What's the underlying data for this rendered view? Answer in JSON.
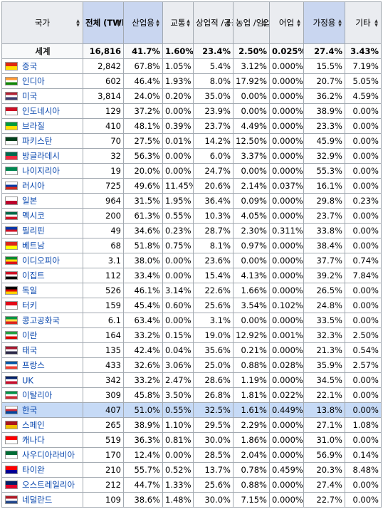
{
  "headers": [
    "국가",
    "전체 (TWh)",
    "산업용",
    "교통",
    "상업적 /공공 서비스",
    "농업 /임업",
    "어업",
    "가정용",
    "기타"
  ],
  "world": {
    "name": "세계",
    "vals": [
      "16,816",
      "41.7%",
      "1.60%",
      "23.4%",
      "2.50%",
      "0.025%",
      "27.4%",
      "3.43%"
    ]
  },
  "rows": [
    {
      "name": "중국",
      "flag": "china-flag-icon",
      "colors": [
        "#de2910",
        "#ffde00"
      ],
      "vals": [
        "2,842",
        "67.8%",
        "1.05%",
        "5.4%",
        "3.12%",
        "0.000%",
        "15.5%",
        "7.19%"
      ]
    },
    {
      "name": "인디아",
      "flag": "india-flag-icon",
      "colors": [
        "#ff9933",
        "#ffffff",
        "#138808"
      ],
      "vals": [
        "602",
        "46.4%",
        "1.93%",
        "8.0%",
        "17.92%",
        "0.000%",
        "20.7%",
        "5.05%"
      ]
    },
    {
      "name": "미국",
      "flag": "usa-flag-icon",
      "colors": [
        "#b22234",
        "#ffffff",
        "#3c3b6e"
      ],
      "vals": [
        "3,814",
        "24.0%",
        "0.20%",
        "35.0%",
        "0.00%",
        "0.000%",
        "36.2%",
        "4.59%"
      ]
    },
    {
      "name": "인도네시아",
      "flag": "indonesia-flag-icon",
      "colors": [
        "#ce1126",
        "#ffffff"
      ],
      "vals": [
        "129",
        "37.2%",
        "0.00%",
        "23.9%",
        "0.00%",
        "0.000%",
        "38.9%",
        "0.00%"
      ]
    },
    {
      "name": "브라질",
      "flag": "brazil-flag-icon",
      "colors": [
        "#009c3b",
        "#ffdf00"
      ],
      "vals": [
        "410",
        "48.1%",
        "0.39%",
        "23.7%",
        "4.49%",
        "0.000%",
        "23.3%",
        "0.00%"
      ]
    },
    {
      "name": "파키스탄",
      "flag": "pakistan-flag-icon",
      "colors": [
        "#01411c",
        "#ffffff"
      ],
      "vals": [
        "70",
        "27.5%",
        "0.01%",
        "14.2%",
        "12.50%",
        "0.000%",
        "45.9%",
        "0.00%"
      ]
    },
    {
      "name": "방글라데시",
      "flag": "bangladesh-flag-icon",
      "colors": [
        "#006a4e",
        "#f42a41"
      ],
      "vals": [
        "32",
        "56.3%",
        "0.00%",
        "6.0%",
        "3.37%",
        "0.000%",
        "32.9%",
        "0.00%"
      ]
    },
    {
      "name": "나이지리아",
      "flag": "nigeria-flag-icon",
      "colors": [
        "#008751",
        "#ffffff"
      ],
      "vals": [
        "19",
        "20.0%",
        "0.00%",
        "24.7%",
        "0.00%",
        "0.000%",
        "55.3%",
        "0.00%"
      ]
    },
    {
      "name": "러시아",
      "flag": "russia-flag-icon",
      "colors": [
        "#ffffff",
        "#0039a6",
        "#d52b1e"
      ],
      "vals": [
        "725",
        "49.6%",
        "11.45%",
        "20.6%",
        "2.14%",
        "0.037%",
        "16.1%",
        "0.00%"
      ]
    },
    {
      "name": "일본",
      "flag": "japan-flag-icon",
      "colors": [
        "#ffffff",
        "#bc002d"
      ],
      "vals": [
        "964",
        "31.5%",
        "1.95%",
        "36.4%",
        "0.09%",
        "0.000%",
        "29.8%",
        "0.23%"
      ]
    },
    {
      "name": "멕시코",
      "flag": "mexico-flag-icon",
      "colors": [
        "#006847",
        "#ffffff",
        "#ce1126"
      ],
      "vals": [
        "200",
        "61.3%",
        "0.55%",
        "10.3%",
        "4.05%",
        "0.000%",
        "23.7%",
        "0.00%"
      ]
    },
    {
      "name": "필리핀",
      "flag": "philippines-flag-icon",
      "colors": [
        "#0038a8",
        "#ce1126",
        "#ffffff"
      ],
      "vals": [
        "49",
        "34.6%",
        "0.23%",
        "28.7%",
        "2.30%",
        "0.311%",
        "33.8%",
        "0.00%"
      ]
    },
    {
      "name": "베트남",
      "flag": "vietnam-flag-icon",
      "colors": [
        "#da251d",
        "#ffff00"
      ],
      "vals": [
        "68",
        "51.8%",
        "0.75%",
        "8.1%",
        "0.97%",
        "0.000%",
        "38.4%",
        "0.00%"
      ]
    },
    {
      "name": "이디오피아",
      "flag": "ethiopia-flag-icon",
      "colors": [
        "#078930",
        "#fcdd09",
        "#da121a"
      ],
      "vals": [
        "3.1",
        "38.0%",
        "0.00%",
        "23.6%",
        "0.00%",
        "0.000%",
        "37.7%",
        "0.74%"
      ]
    },
    {
      "name": "이집트",
      "flag": "egypt-flag-icon",
      "colors": [
        "#ce1126",
        "#ffffff",
        "#000000"
      ],
      "vals": [
        "112",
        "33.4%",
        "0.00%",
        "15.4%",
        "4.13%",
        "0.000%",
        "39.2%",
        "7.84%"
      ]
    },
    {
      "name": "독일",
      "flag": "germany-flag-icon",
      "colors": [
        "#000000",
        "#dd0000",
        "#ffce00"
      ],
      "vals": [
        "526",
        "46.1%",
        "3.14%",
        "22.6%",
        "1.66%",
        "0.000%",
        "26.5%",
        "0.00%"
      ]
    },
    {
      "name": "터키",
      "flag": "turkey-flag-icon",
      "colors": [
        "#e30a17",
        "#ffffff"
      ],
      "vals": [
        "159",
        "45.4%",
        "0.60%",
        "25.6%",
        "3.54%",
        "0.102%",
        "24.8%",
        "0.00%"
      ]
    },
    {
      "name": "콩고공화국",
      "flag": "congo-flag-icon",
      "colors": [
        "#009543",
        "#fbde4a",
        "#dc241f"
      ],
      "vals": [
        "6.1",
        "63.4%",
        "0.00%",
        "3.1%",
        "0.00%",
        "0.000%",
        "33.5%",
        "0.00%"
      ]
    },
    {
      "name": "이란",
      "flag": "iran-flag-icon",
      "colors": [
        "#239f40",
        "#ffffff",
        "#da0000"
      ],
      "vals": [
        "164",
        "33.2%",
        "0.15%",
        "19.0%",
        "12.92%",
        "0.001%",
        "32.3%",
        "2.50%"
      ]
    },
    {
      "name": "태국",
      "flag": "thailand-flag-icon",
      "colors": [
        "#a51931",
        "#f4f5f8",
        "#2d2a4a"
      ],
      "vals": [
        "135",
        "42.4%",
        "0.04%",
        "35.6%",
        "0.21%",
        "0.000%",
        "21.3%",
        "0.54%"
      ]
    },
    {
      "name": "프랑스",
      "flag": "france-flag-icon",
      "colors": [
        "#0055a4",
        "#ffffff",
        "#ef4135"
      ],
      "vals": [
        "433",
        "32.6%",
        "3.06%",
        "25.0%",
        "0.88%",
        "0.028%",
        "35.9%",
        "2.57%"
      ]
    },
    {
      "name": "UK",
      "flag": "uk-flag-icon",
      "colors": [
        "#012169",
        "#ffffff",
        "#c8102e"
      ],
      "vals": [
        "342",
        "33.2%",
        "2.47%",
        "28.6%",
        "1.19%",
        "0.000%",
        "34.5%",
        "0.00%"
      ]
    },
    {
      "name": "이탈리아",
      "flag": "italy-flag-icon",
      "colors": [
        "#009246",
        "#ffffff",
        "#ce2b37"
      ],
      "vals": [
        "309",
        "45.8%",
        "3.50%",
        "26.8%",
        "1.81%",
        "0.022%",
        "22.1%",
        "0.00%"
      ]
    },
    {
      "name": "한국",
      "flag": "korea-flag-icon",
      "colors": [
        "#ffffff",
        "#cd2e3a",
        "#0047a0"
      ],
      "highlight": true,
      "vals": [
        "407",
        "51.0%",
        "0.55%",
        "32.5%",
        "1.61%",
        "0.449%",
        "13.8%",
        "0.00%"
      ]
    },
    {
      "name": "스페인",
      "flag": "spain-flag-icon",
      "colors": [
        "#aa151b",
        "#f1bf00"
      ],
      "vals": [
        "265",
        "38.9%",
        "1.10%",
        "29.5%",
        "2.29%",
        "0.000%",
        "27.1%",
        "1.08%"
      ]
    },
    {
      "name": "캐나다",
      "flag": "canada-flag-icon",
      "colors": [
        "#ff0000",
        "#ffffff"
      ],
      "vals": [
        "519",
        "36.3%",
        "0.81%",
        "30.0%",
        "1.86%",
        "0.000%",
        "31.0%",
        "0.00%"
      ]
    },
    {
      "name": "사우디아라비아",
      "flag": "saudi-flag-icon",
      "colors": [
        "#006c35",
        "#ffffff"
      ],
      "vals": [
        "170",
        "12.4%",
        "0.00%",
        "28.5%",
        "2.04%",
        "0.000%",
        "56.9%",
        "0.14%"
      ]
    },
    {
      "name": "타이완",
      "flag": "taiwan-flag-icon",
      "colors": [
        "#fe0000",
        "#000095"
      ],
      "vals": [
        "210",
        "55.7%",
        "0.52%",
        "13.7%",
        "0.78%",
        "0.459%",
        "20.3%",
        "8.48%"
      ]
    },
    {
      "name": "오스트레일리아",
      "flag": "australia-flag-icon",
      "colors": [
        "#012169",
        "#e4002b"
      ],
      "vals": [
        "212",
        "44.7%",
        "1.33%",
        "25.6%",
        "0.88%",
        "0.000%",
        "27.4%",
        "0.00%"
      ]
    },
    {
      "name": "네덜란드",
      "flag": "netherlands-flag-icon",
      "colors": [
        "#ae1c28",
        "#ffffff",
        "#21468b"
      ],
      "vals": [
        "109",
        "38.6%",
        "1.48%",
        "30.0%",
        "7.15%",
        "0.000%",
        "22.7%",
        "0.00%"
      ]
    }
  ]
}
